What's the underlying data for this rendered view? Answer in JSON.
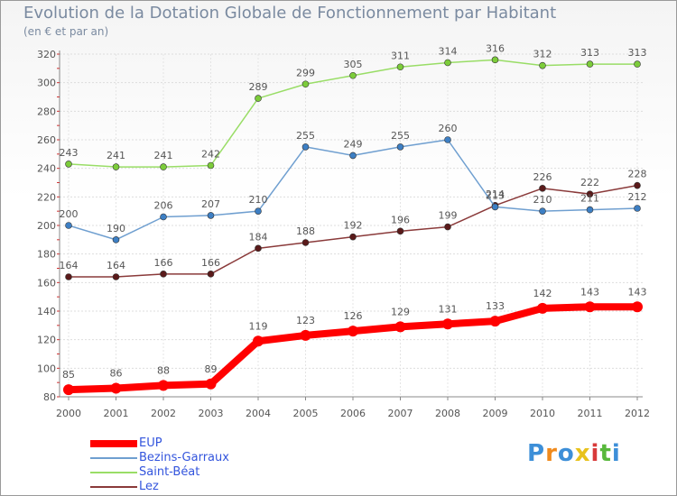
{
  "chart_data": {
    "type": "line",
    "title": "Evolution de la Dotation Globale de Fonctionnement par Habitant",
    "subtitle": "(en € et par an)",
    "xlabel": "",
    "ylabel": "",
    "categories": [
      "2000",
      "2001",
      "2002",
      "2003",
      "2004",
      "2005",
      "2006",
      "2007",
      "2008",
      "2009",
      "2010",
      "2011",
      "2012"
    ],
    "ylim": [
      80,
      320
    ],
    "yticks": [
      80,
      100,
      120,
      140,
      160,
      180,
      200,
      220,
      240,
      260,
      280,
      300,
      320
    ],
    "grid": true,
    "legend_position": "bottom-left",
    "series": [
      {
        "name": "EUP",
        "color": "#ff0000",
        "marker": "#ff0000",
        "emphasis": true,
        "values": [
          85,
          86,
          88,
          89,
          119,
          123,
          126,
          129,
          131,
          133,
          142,
          143,
          143
        ]
      },
      {
        "name": "Bezins-Garraux",
        "color": "#6f9fd0",
        "marker": "#3d7fc4",
        "values": [
          200,
          190,
          206,
          207,
          210,
          255,
          249,
          255,
          260,
          213,
          210,
          211,
          212
        ]
      },
      {
        "name": "Saint-Béat",
        "color": "#99dd66",
        "marker": "#7ccc3a",
        "values": [
          243,
          241,
          241,
          242,
          289,
          299,
          305,
          311,
          314,
          316,
          312,
          313,
          313
        ]
      },
      {
        "name": "Lez",
        "color": "#8a3a3a",
        "marker": "#5a1a1a",
        "values": [
          164,
          164,
          166,
          166,
          184,
          188,
          192,
          196,
          199,
          214,
          226,
          222,
          228
        ]
      }
    ]
  },
  "logo": {
    "letters": [
      "P",
      "r",
      "o",
      "x",
      "i",
      "t",
      "i"
    ],
    "colors": [
      "#3d8fd8",
      "#f08a1c",
      "#3d8fd8",
      "#e8c21c",
      "#d83a3a",
      "#58b83c",
      "#3d8fd8"
    ]
  }
}
